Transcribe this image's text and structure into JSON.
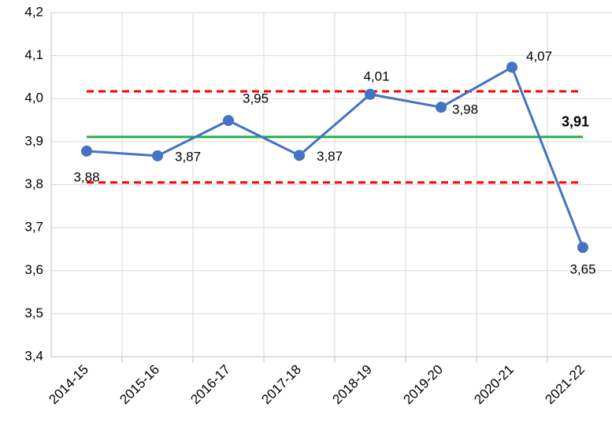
{
  "chart_data": {
    "type": "line",
    "categories": [
      "2014-15",
      "2015-16",
      "2016-17",
      "2017-18",
      "2018-19",
      "2019-20",
      "2020-21",
      "2021-22"
    ],
    "series": [
      {
        "color": "#4472c4",
        "values": [
          3.878,
          3.867,
          3.949,
          3.868,
          4.01,
          3.98,
          4.073,
          3.654
        ],
        "value_labels": [
          "3,88",
          "3,87",
          "3,95",
          "3,87",
          "4,01",
          "3,98",
          "4,07",
          "3,65"
        ]
      }
    ],
    "reference_lines": [
      {
        "value": 3.911,
        "label": "3,91",
        "color": "#21b14b",
        "dashed": false
      },
      {
        "value": 4.017,
        "color": "#ff0000",
        "dashed": true
      },
      {
        "value": 3.805,
        "color": "#ff0000",
        "dashed": true
      }
    ],
    "ylim": [
      3.4,
      4.2
    ],
    "yticks": [
      {
        "value": 3.4,
        "label": "3,4"
      },
      {
        "value": 3.5,
        "label": "3,5"
      },
      {
        "value": 3.6,
        "label": "3,6"
      },
      {
        "value": 3.7,
        "label": "3,7"
      },
      {
        "value": 3.8,
        "label": "3,8"
      },
      {
        "value": 3.9,
        "label": "3,9"
      },
      {
        "value": 4.0,
        "label": "4,0"
      },
      {
        "value": 4.1,
        "label": "4,1"
      },
      {
        "value": 4.2,
        "label": "4,2"
      }
    ],
    "grid": true
  }
}
